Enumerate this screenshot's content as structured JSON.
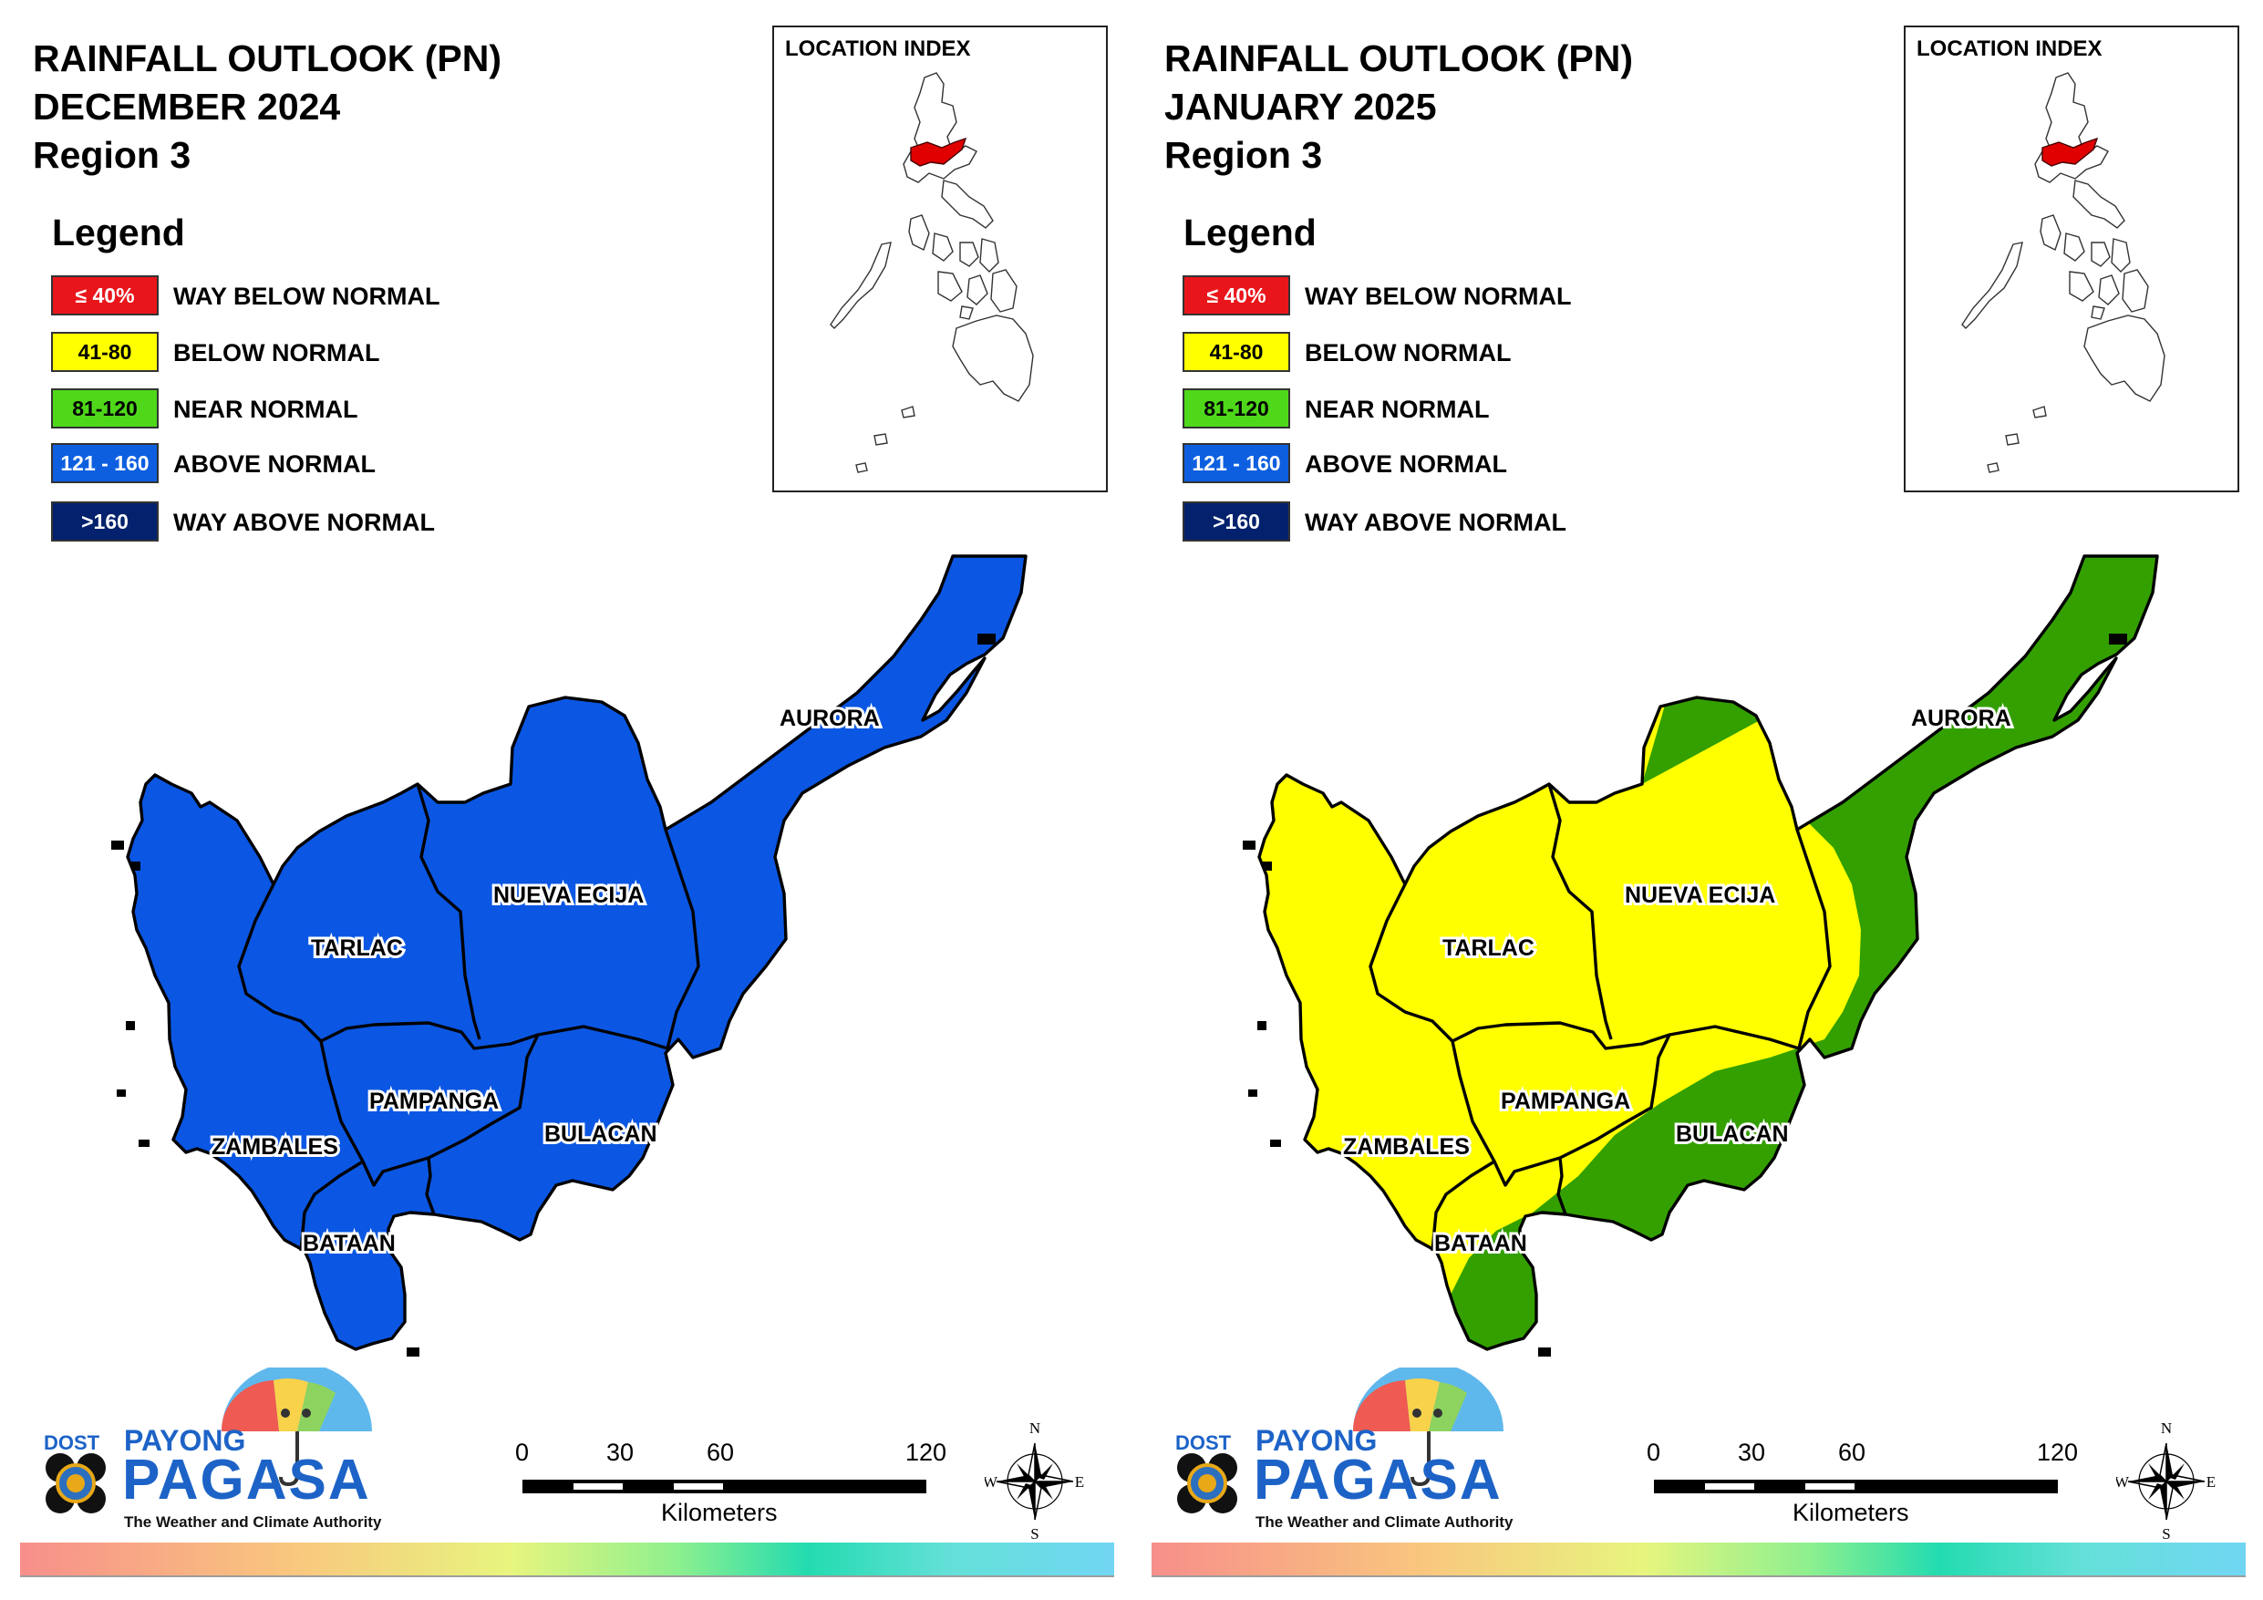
{
  "panels": [
    {
      "title": [
        "RAINFALL OUTLOOK (PN)",
        "DECEMBER 2024",
        "Region 3"
      ],
      "legend_heading": "Legend",
      "inset_title": "LOCATION INDEX",
      "fill_primary": "#0b57e3",
      "fill_secondary": "#0b57e3"
    },
    {
      "title": [
        "RAINFALL OUTLOOK (PN)",
        "JANUARY 2025",
        "Region 3"
      ],
      "legend_heading": "Legend",
      "inset_title": "LOCATION INDEX",
      "fill_primary": "#ffff00",
      "fill_secondary": "#33a000"
    }
  ],
  "legend": [
    {
      "code": "≤ 40%",
      "label": "WAY BELOW NORMAL",
      "color": "#e8161b",
      "text_color": "#ffffff"
    },
    {
      "code": "41-80",
      "label": "BELOW NORMAL",
      "color": "#ffff00",
      "text_color": "#000000"
    },
    {
      "code": "81-120",
      "label": "NEAR NORMAL",
      "color": "#4fd81a",
      "text_color": "#000000"
    },
    {
      "code": "121 - 160",
      "label": "ABOVE NORMAL",
      "color": "#0d5fe0",
      "text_color": "#ffffff"
    },
    {
      "code": ">160",
      "label": "WAY ABOVE NORMAL",
      "color": "#04216d",
      "text_color": "#ffffff"
    }
  ],
  "provinces": [
    "AURORA",
    "NUEVA ECIJA",
    "TARLAC",
    "PAMPANGA",
    "BULACAN",
    "ZAMBALES",
    "BATAAN"
  ],
  "logo": {
    "dost": "DOST",
    "payong": "PAYONG",
    "pagasa": "PAGASA",
    "tagline": "The Weather and Climate Authority"
  },
  "scale": {
    "ticks": [
      "0",
      "30",
      "60",
      "120"
    ],
    "unit": "Kilometers"
  },
  "compass": {
    "n": "N",
    "e": "E",
    "s": "S",
    "w": "W"
  }
}
